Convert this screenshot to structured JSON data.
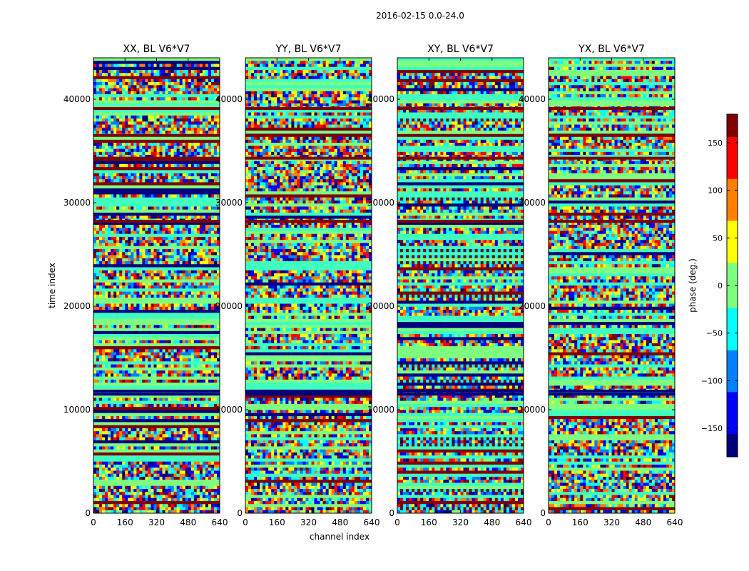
{
  "figure": {
    "suptitle": "2016-02-15 0.0-24.0"
  },
  "chart_data": {
    "type": "heatmap",
    "panels": [
      {
        "title": "XX, BL V6*V7",
        "seed": 11,
        "texture": "mixed"
      },
      {
        "title": "YY, BL V6*V7",
        "seed": 23,
        "texture": "mixed"
      },
      {
        "title": "XY, BL V6*V7",
        "seed": 37,
        "texture": "striped"
      },
      {
        "title": "YX, BL V6*V7",
        "seed": 51,
        "texture": "mixed"
      }
    ],
    "xlabel": "channel index",
    "ylabel": "time index",
    "xlim": [
      0,
      640
    ],
    "ylim": [
      0,
      44000
    ],
    "xticks": [
      0,
      160,
      320,
      480,
      640
    ],
    "yticks": [
      0,
      10000,
      20000,
      30000,
      40000
    ],
    "yticklabels_first_panel": [
      "0",
      "10000",
      "20000",
      "30000",
      "40000"
    ],
    "yticklabels_other_panels": [
      "0",
      "10000",
      "20000",
      "30000",
      "40000"
    ],
    "colorbar": {
      "label": "phase (deg.)",
      "range": [
        -180,
        180
      ],
      "ticks": [
        -150,
        -100,
        -50,
        0,
        50,
        100,
        150
      ],
      "ticklabels": [
        "−150",
        "−100",
        "−50",
        "0",
        "50",
        "100",
        "150"
      ],
      "colormap": "jet",
      "colors": [
        "#00007f",
        "#0000ff",
        "#007fff",
        "#00ffff",
        "#7fff7f",
        "#ffff00",
        "#ff7f00",
        "#ff0000",
        "#7f0000"
      ]
    },
    "dark_band_rows": [
      11500,
      11800,
      28200,
      34300,
      36500,
      39100
    ]
  }
}
